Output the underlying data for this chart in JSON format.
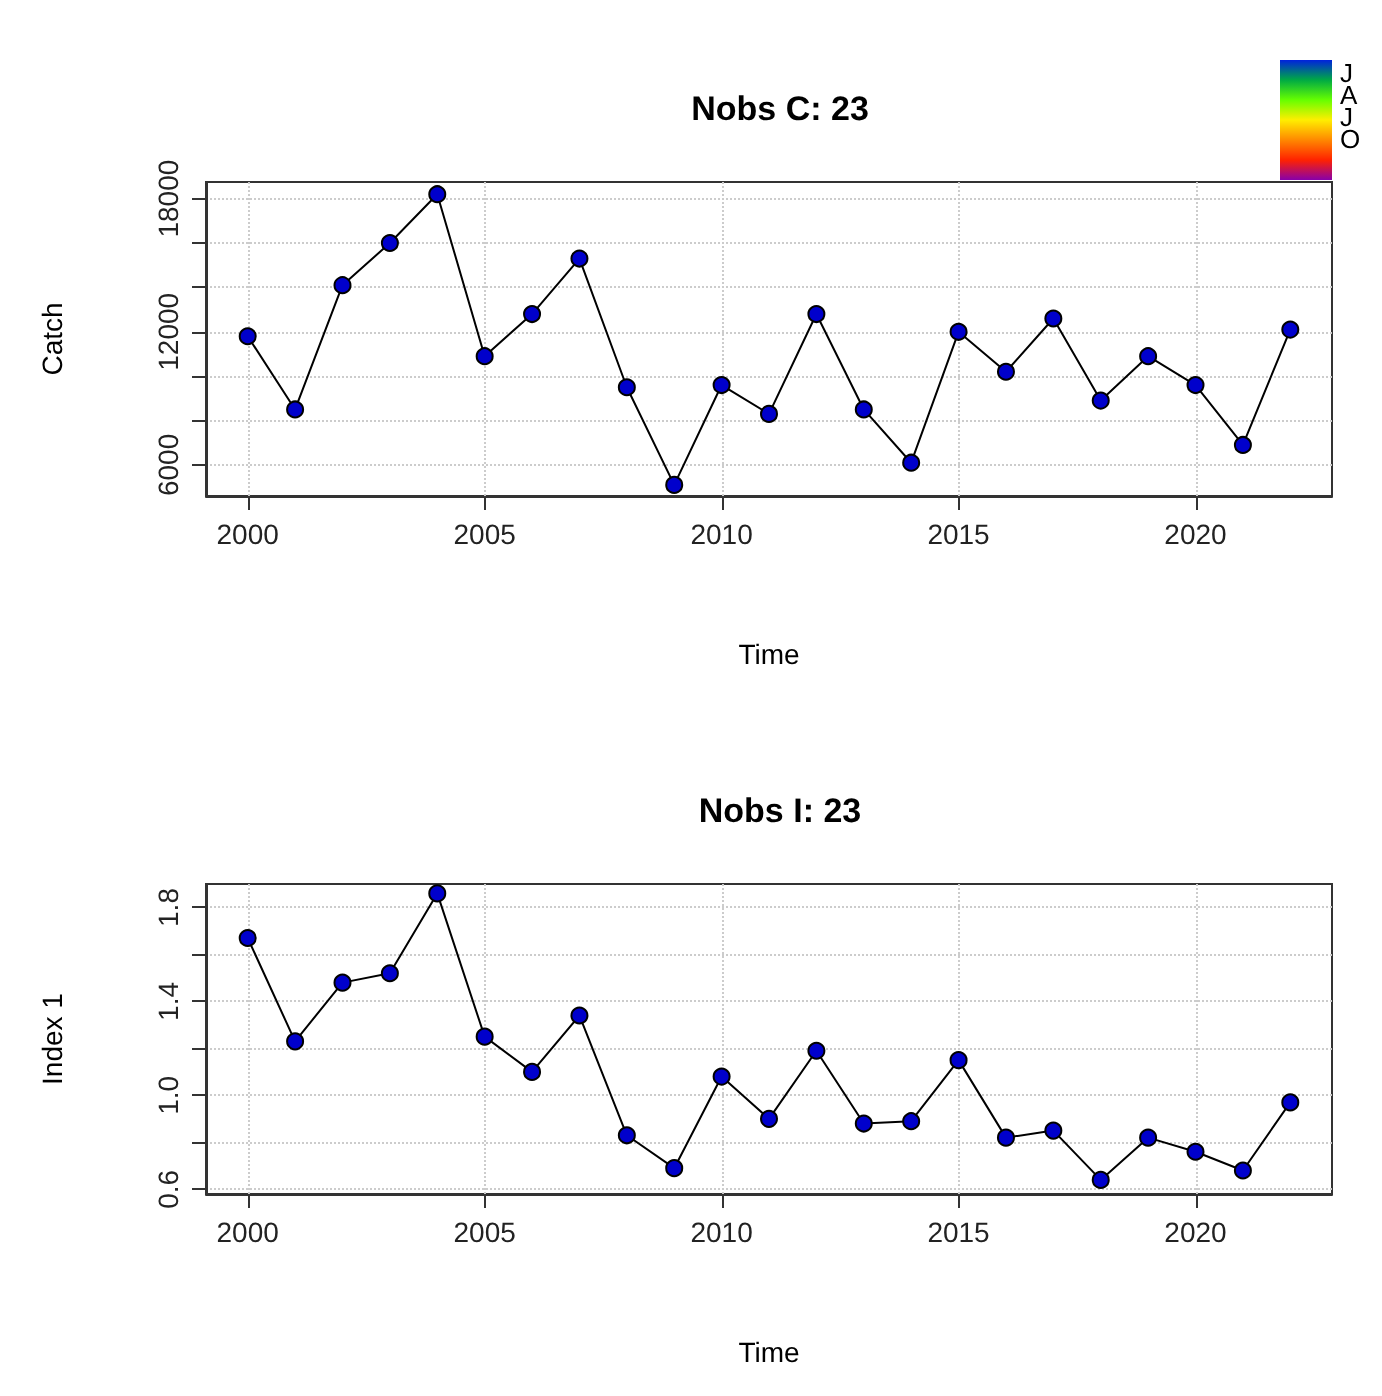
{
  "chart_data": [
    {
      "type": "line",
      "title": "Nobs C: 23",
      "xlabel": "Time",
      "ylabel": "Catch",
      "x": [
        2000,
        2001,
        2002,
        2003,
        2004,
        2005,
        2006,
        2007,
        2008,
        2009,
        2010,
        2011,
        2012,
        2013,
        2014,
        2015,
        2016,
        2017,
        2018,
        2019,
        2020,
        2021,
        2022
      ],
      "series": [
        {
          "color": "#0000cc",
          "values": [
            11800,
            8500,
            14100,
            16000,
            18200,
            10900,
            12800,
            15300,
            9500,
            5100,
            9600,
            8300,
            12800,
            8500,
            6100,
            12000,
            10200,
            12600,
            8900,
            10900,
            9600,
            6900,
            12100
          ]
        }
      ],
      "xlim": [
        1999.12,
        2022.88
      ],
      "xticks": [
        2000,
        2005,
        2010,
        2015,
        2020
      ],
      "ylim": [
        4600,
        18750
      ],
      "yticks": [
        6000,
        {
          "value": 8000,
          "label": null
        },
        {
          "value": 10000,
          "label": null
        },
        12000,
        {
          "value": 14000,
          "label": null
        },
        {
          "value": 16000,
          "label": null
        },
        18000
      ],
      "grid": true,
      "marker": "circle",
      "line_style": "solid",
      "annotations": [
        "J",
        "A",
        "J",
        "O"
      ]
    },
    {
      "type": "line",
      "title": "Nobs I: 23",
      "xlabel": "Time",
      "ylabel": "Index 1",
      "x": [
        2000,
        2001,
        2002,
        2003,
        2004,
        2005,
        2006,
        2007,
        2008,
        2009,
        2010,
        2011,
        2012,
        2013,
        2014,
        2015,
        2016,
        2017,
        2018,
        2019,
        2020,
        2021,
        2022
      ],
      "series": [
        {
          "color": "#0000cc",
          "values": [
            1.67,
            1.23,
            1.48,
            1.52,
            1.86,
            1.25,
            1.1,
            1.34,
            0.83,
            0.69,
            1.08,
            0.9,
            1.19,
            0.88,
            0.89,
            1.15,
            0.82,
            0.85,
            0.64,
            0.82,
            0.76,
            0.68,
            0.97
          ]
        }
      ],
      "xlim": [
        1999.12,
        2022.88
      ],
      "xticks": [
        2000,
        2005,
        2010,
        2015,
        2020
      ],
      "ylim": [
        0.58,
        1.9
      ],
      "yticks": [
        0.6,
        {
          "value": 0.8,
          "label": null
        },
        {
          "value": 1.0,
          "label": "1.0"
        },
        {
          "value": 1.2,
          "label": null
        },
        1.4,
        {
          "value": 1.6,
          "label": null
        },
        1.8
      ],
      "grid": true,
      "marker": "circle",
      "line_style": "solid"
    }
  ]
}
